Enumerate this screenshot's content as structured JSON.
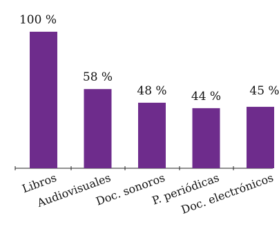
{
  "chart_data": {
    "type": "bar",
    "title": "",
    "xlabel": "",
    "ylabel": "",
    "categories": [
      "Libros",
      "Audiovisuales",
      "Doc. sonoros",
      "P. periódicas",
      "Doc. electrónicos"
    ],
    "values": [
      100,
      58,
      48,
      44,
      45
    ],
    "value_labels": [
      "100 %",
      "58 %",
      "48 %",
      "44 %",
      "45 %"
    ],
    "ylim": [
      0,
      100
    ],
    "grid": false,
    "legend": "none",
    "bar_color": "#6e2c8c"
  }
}
